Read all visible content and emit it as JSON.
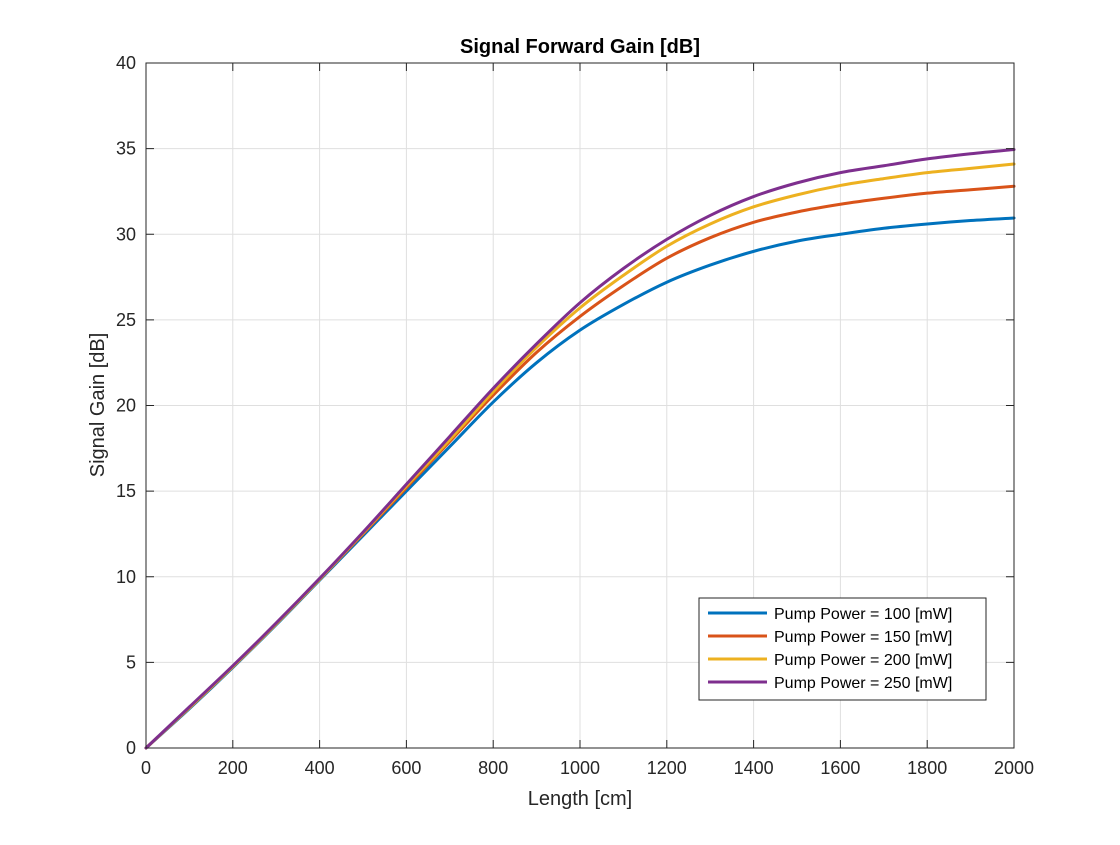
{
  "chart_data": {
    "type": "line",
    "title": "Signal Forward Gain [dB]",
    "xlabel": "Length [cm]",
    "ylabel": "Signal Gain [dB]",
    "xlim": [
      0,
      2000
    ],
    "ylim": [
      0,
      40
    ],
    "xticks": [
      0,
      200,
      400,
      600,
      800,
      1000,
      1200,
      1400,
      1600,
      1800,
      2000
    ],
    "yticks": [
      0,
      5,
      10,
      15,
      20,
      25,
      30,
      35,
      40
    ],
    "grid": true,
    "legend_position": "bottom-right",
    "x": [
      0,
      100,
      200,
      300,
      400,
      500,
      600,
      700,
      800,
      900,
      1000,
      1100,
      1200,
      1300,
      1400,
      1500,
      1600,
      1700,
      1800,
      1900,
      2000
    ],
    "series": [
      {
        "name": "Pump Power = 100 [mW]",
        "color": "#0072BD",
        "values": [
          0,
          2.3,
          4.7,
          7.2,
          9.8,
          12.4,
          15.0,
          17.6,
          20.2,
          22.5,
          24.4,
          25.9,
          27.2,
          28.2,
          29.0,
          29.6,
          30.0,
          30.35,
          30.6,
          30.8,
          30.95
        ]
      },
      {
        "name": "Pump Power = 150 [mW]",
        "color": "#D95319",
        "values": [
          0,
          2.35,
          4.75,
          7.25,
          9.85,
          12.5,
          15.2,
          17.9,
          20.6,
          23.1,
          25.2,
          27.0,
          28.6,
          29.8,
          30.7,
          31.3,
          31.75,
          32.1,
          32.4,
          32.6,
          32.8
        ]
      },
      {
        "name": "Pump Power = 200 [mW]",
        "color": "#EDB120",
        "values": [
          0,
          2.35,
          4.75,
          7.25,
          9.85,
          12.55,
          15.3,
          18.0,
          20.8,
          23.4,
          25.7,
          27.6,
          29.3,
          30.6,
          31.6,
          32.3,
          32.85,
          33.25,
          33.6,
          33.85,
          34.1
        ]
      },
      {
        "name": "Pump Power = 250 [mW]",
        "color": "#7E2F8E",
        "values": [
          0,
          2.4,
          4.8,
          7.3,
          9.9,
          12.6,
          15.4,
          18.2,
          21.0,
          23.6,
          26.0,
          28.0,
          29.7,
          31.1,
          32.2,
          33.0,
          33.6,
          34.0,
          34.4,
          34.7,
          34.95
        ]
      }
    ]
  }
}
